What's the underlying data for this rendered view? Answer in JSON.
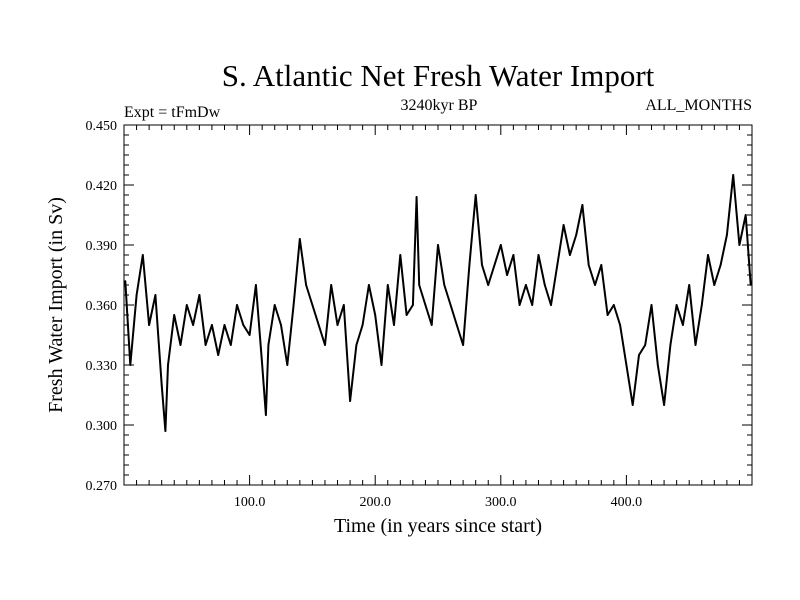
{
  "chart_data": {
    "type": "line",
    "title": "S. Atlantic Net Fresh Water Import",
    "subtitle_left": "Expt = tFmDw",
    "subtitle_center": "3240kyr BP",
    "subtitle_right": "ALL_MONTHS",
    "xlabel": "Time (in years since start)",
    "ylabel": "Fresh Water Import (in Sv)",
    "xlim": [
      0,
      500
    ],
    "ylim": [
      0.27,
      0.45
    ],
    "xticks": [
      100,
      200,
      300,
      400
    ],
    "xtick_labels": [
      "100.0",
      "200.0",
      "300.0",
      "400.0"
    ],
    "yticks": [
      0.27,
      0.3,
      0.33,
      0.36,
      0.39,
      0.42,
      0.45
    ],
    "ytick_labels": [
      "0.270",
      "0.300",
      "0.330",
      "0.360",
      "0.390",
      "0.420",
      "0.450"
    ],
    "grid": false,
    "series": [
      {
        "name": "Fresh Water Import",
        "x": [
          1,
          5,
          10,
          15,
          20,
          25,
          30,
          33,
          35,
          40,
          45,
          50,
          55,
          60,
          65,
          70,
          75,
          80,
          85,
          90,
          95,
          100,
          105,
          110,
          113,
          115,
          120,
          125,
          130,
          135,
          140,
          145,
          150,
          155,
          160,
          165,
          170,
          175,
          180,
          185,
          190,
          195,
          200,
          205,
          210,
          215,
          220,
          225,
          230,
          233,
          235,
          240,
          245,
          250,
          255,
          260,
          265,
          270,
          275,
          280,
          285,
          290,
          295,
          300,
          305,
          310,
          315,
          320,
          325,
          330,
          335,
          340,
          345,
          350,
          355,
          360,
          365,
          370,
          375,
          380,
          385,
          390,
          395,
          400,
          405,
          410,
          415,
          420,
          425,
          430,
          435,
          440,
          445,
          450,
          455,
          460,
          465,
          470,
          475,
          480,
          485,
          490,
          495,
          499
        ],
        "values": [
          0.372,
          0.33,
          0.365,
          0.385,
          0.35,
          0.365,
          0.32,
          0.297,
          0.33,
          0.355,
          0.34,
          0.36,
          0.35,
          0.365,
          0.34,
          0.35,
          0.335,
          0.35,
          0.34,
          0.36,
          0.35,
          0.345,
          0.37,
          0.33,
          0.305,
          0.34,
          0.36,
          0.35,
          0.33,
          0.36,
          0.393,
          0.37,
          0.36,
          0.35,
          0.34,
          0.37,
          0.35,
          0.36,
          0.312,
          0.34,
          0.35,
          0.37,
          0.355,
          0.33,
          0.37,
          0.35,
          0.385,
          0.355,
          0.36,
          0.414,
          0.37,
          0.36,
          0.35,
          0.39,
          0.37,
          0.36,
          0.35,
          0.34,
          0.38,
          0.415,
          0.38,
          0.37,
          0.38,
          0.39,
          0.375,
          0.385,
          0.36,
          0.37,
          0.36,
          0.385,
          0.37,
          0.36,
          0.38,
          0.4,
          0.385,
          0.395,
          0.41,
          0.38,
          0.37,
          0.38,
          0.355,
          0.36,
          0.35,
          0.33,
          0.31,
          0.335,
          0.34,
          0.36,
          0.33,
          0.31,
          0.34,
          0.36,
          0.35,
          0.37,
          0.34,
          0.36,
          0.385,
          0.37,
          0.38,
          0.395,
          0.425,
          0.39,
          0.405,
          0.37
        ]
      }
    ]
  }
}
